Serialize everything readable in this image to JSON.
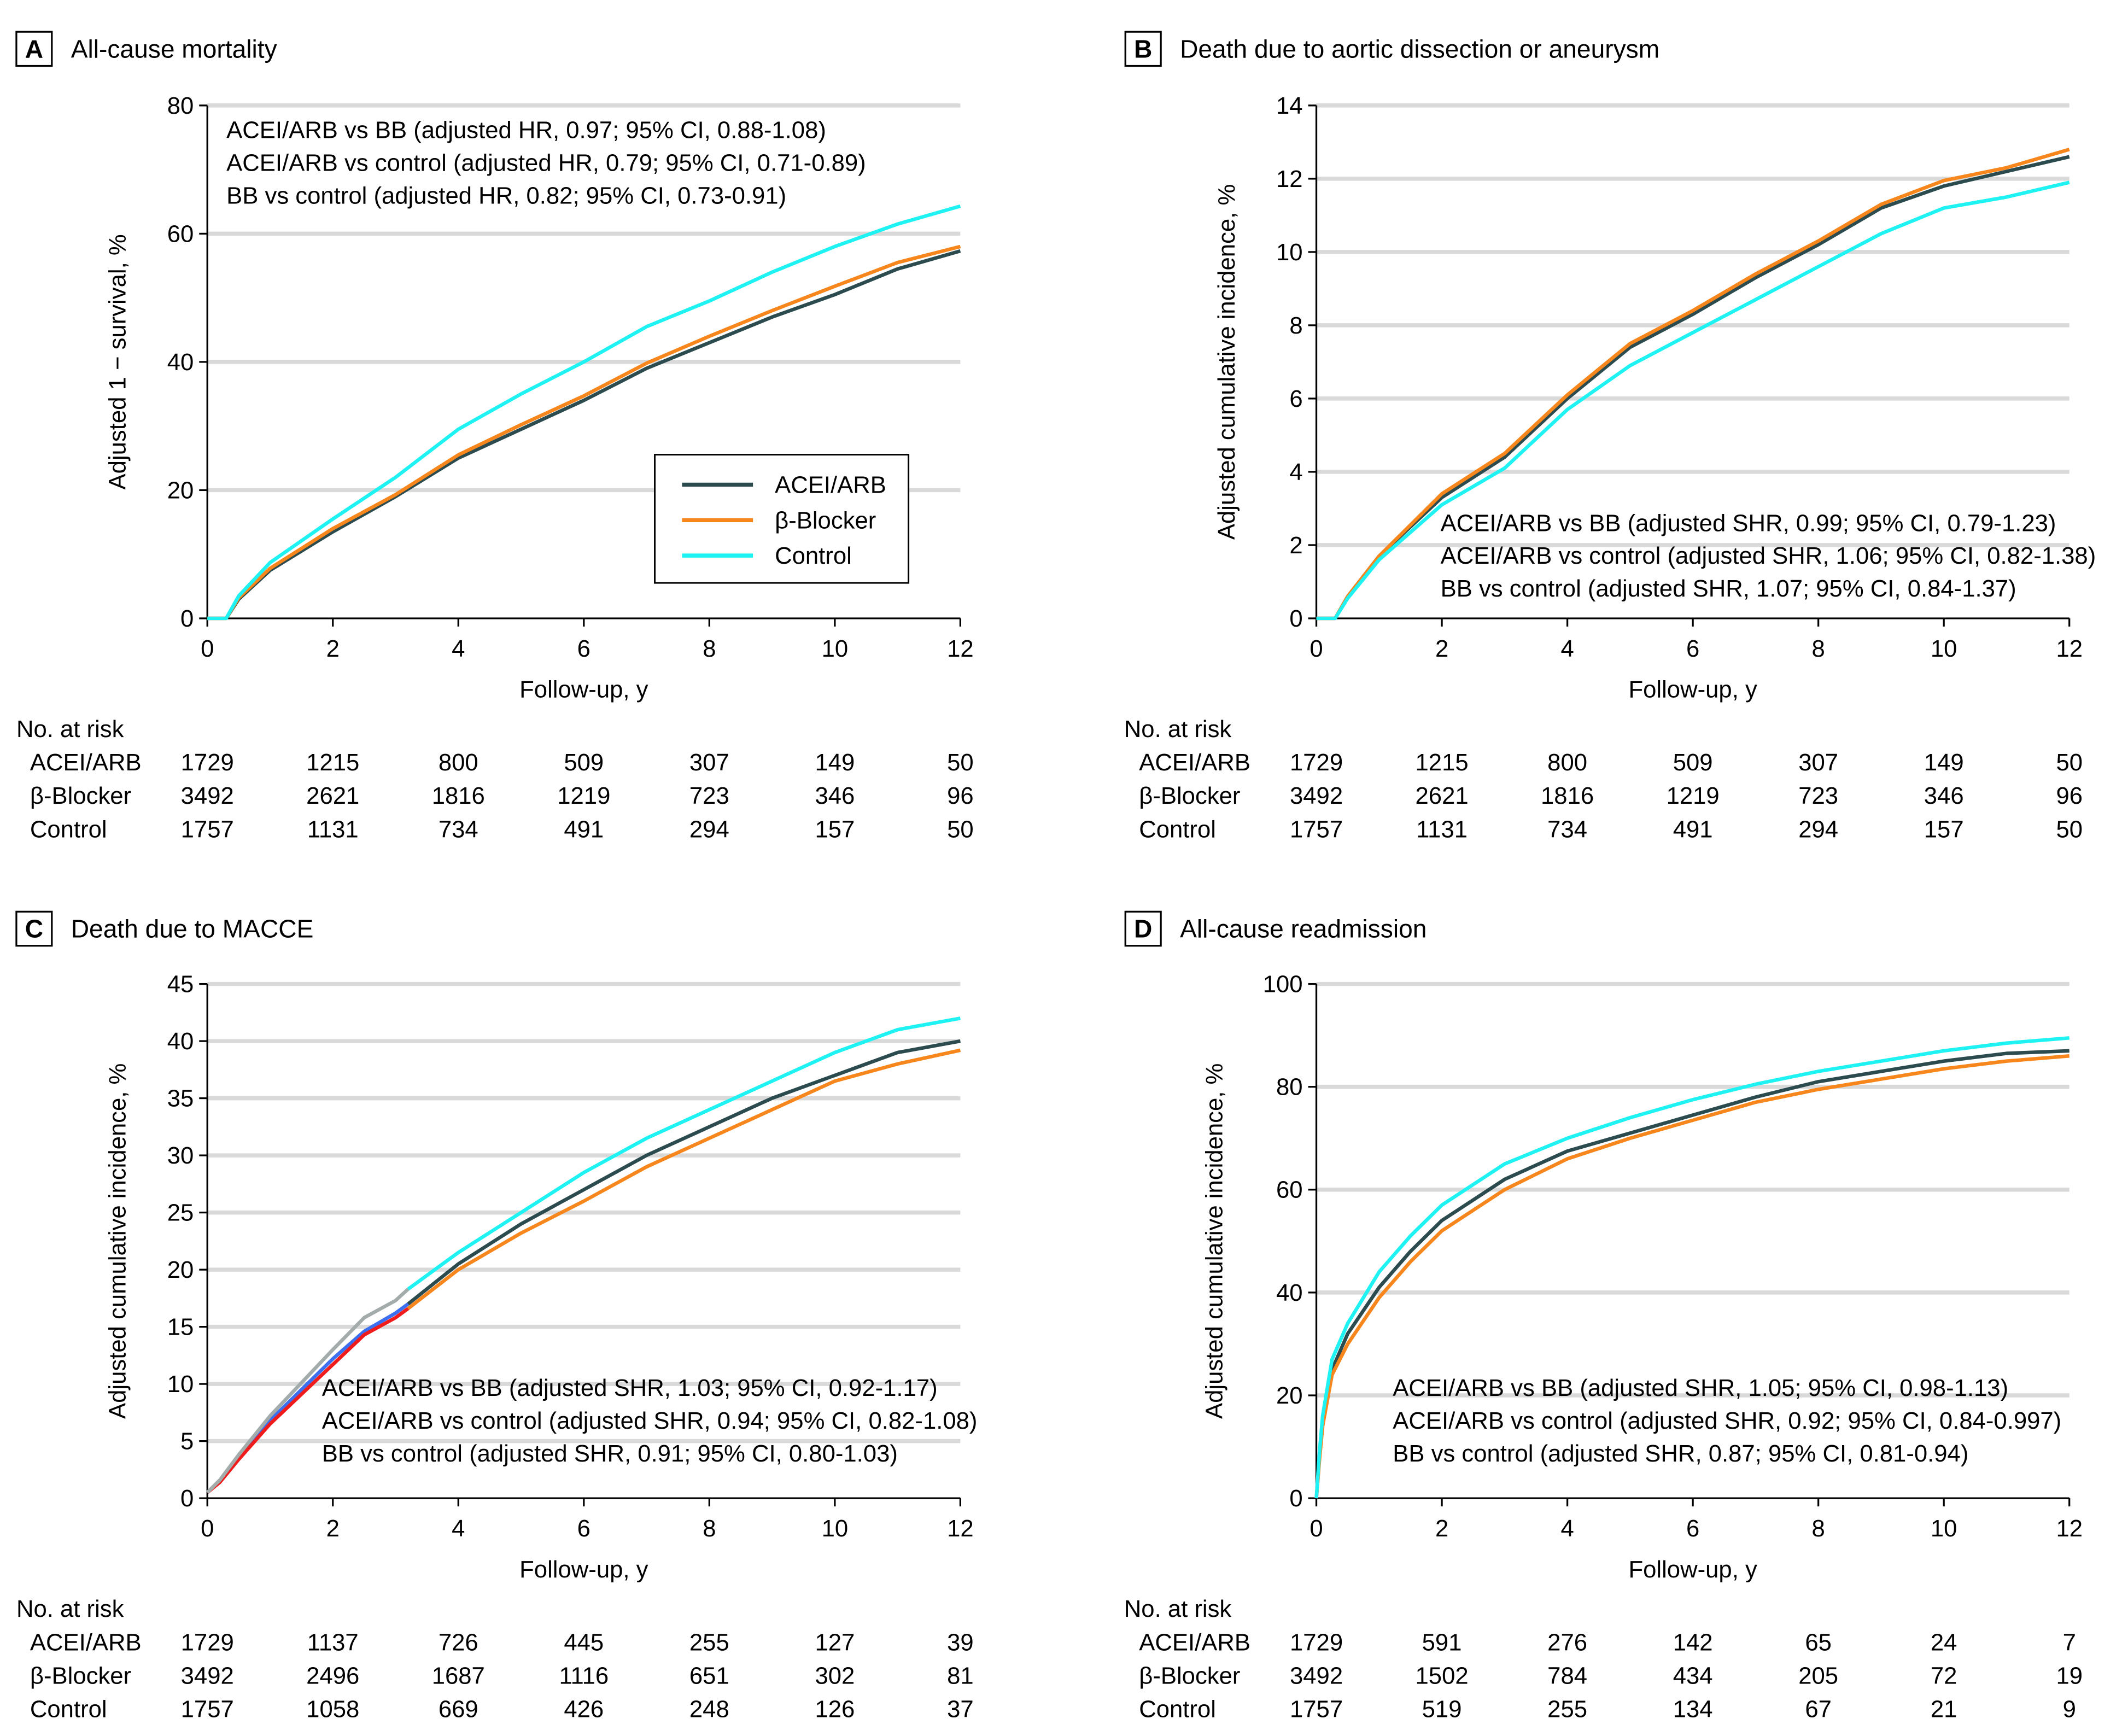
{
  "colors": {
    "acei": "#2b4b4e",
    "bb": "#f7861c",
    "control": "#1ef2f2",
    "early_acei": "#3b6ff0",
    "early_bb": "#f01c1c",
    "early_control": "#a3abab"
  },
  "legend": {
    "items": [
      {
        "label": "ACEI/ARB",
        "key": "acei"
      },
      {
        "label": "β-Blocker",
        "key": "bb"
      },
      {
        "label": "Control",
        "key": "control"
      }
    ]
  },
  "chart_data": [
    {
      "type": "line",
      "letter": "A",
      "title": "All-cause mortality",
      "xlabel": "Follow-up, y",
      "ylabel": "Adjusted 1 − survival, %",
      "xlim": [
        0,
        12
      ],
      "xticks": [
        0,
        2,
        4,
        6,
        8,
        10,
        12
      ],
      "ylim": [
        0,
        80
      ],
      "yticks": [
        0,
        20,
        40,
        60,
        80
      ],
      "grid": true,
      "legend": "center-right",
      "annotations": [
        "ACEI/ARB vs BB (adjusted HR, 0.97; 95% CI, 0.88-1.08)",
        "ACEI/ARB vs control (adjusted HR, 0.79; 95% CI, 0.71-0.89)",
        "BB vs control (adjusted HR, 0.82; 95% CI, 0.73-0.91)"
      ],
      "series": [
        {
          "name": "ACEI/ARB",
          "key": "acei",
          "x": [
            0,
            0.3,
            0.5,
            1,
            2,
            3,
            4,
            5,
            6,
            7,
            8,
            9,
            10,
            11,
            12
          ],
          "y": [
            0,
            0,
            3,
            7.5,
            13.5,
            19,
            25,
            29.5,
            34,
            39,
            43,
            47,
            50.5,
            54.5,
            57.3
          ]
        },
        {
          "name": "β-Blocker",
          "key": "bb",
          "x": [
            0,
            0.3,
            0.5,
            1,
            2,
            3,
            4,
            5,
            6,
            7,
            8,
            9,
            10,
            11,
            12
          ],
          "y": [
            0,
            0,
            3.2,
            7.8,
            14,
            19.3,
            25.5,
            30.2,
            34.7,
            39.8,
            44,
            48,
            51.8,
            55.5,
            58
          ]
        },
        {
          "name": "Control",
          "key": "control",
          "x": [
            0,
            0.3,
            0.5,
            1,
            2,
            3,
            4,
            5,
            6,
            7,
            8,
            9,
            10,
            11,
            12
          ],
          "y": [
            0,
            0,
            3.5,
            8.7,
            15.5,
            22,
            29.5,
            35,
            40,
            45.5,
            49.5,
            54,
            58,
            61.5,
            64.3
          ]
        }
      ],
      "risk_table": {
        "heading": "No. at risk",
        "rows": [
          {
            "label": "ACEI/ARB",
            "values": [
              "1729",
              "1215",
              "800",
              "509",
              "307",
              "149",
              "50"
            ]
          },
          {
            "label": "β-Blocker",
            "values": [
              "3492",
              "2621",
              "1816",
              "1219",
              "723",
              "346",
              "96"
            ]
          },
          {
            "label": "Control",
            "values": [
              "1757",
              "1131",
              "734",
              "491",
              "294",
              "157",
              "50"
            ]
          }
        ]
      }
    },
    {
      "type": "line",
      "letter": "B",
      "title": "Death due to aortic dissection or aneurysm",
      "xlabel": "Follow-up, y",
      "ylabel": "Adjusted cumulative incidence, %",
      "xlim": [
        0,
        12
      ],
      "xticks": [
        0,
        2,
        4,
        6,
        8,
        10,
        12
      ],
      "ylim": [
        0,
        14
      ],
      "yticks": [
        0,
        2,
        4,
        6,
        8,
        10,
        12,
        14
      ],
      "grid": true,
      "annotations": [
        "ACEI/ARB vs BB (adjusted SHR, 0.99; 95% CI, 0.79-1.23)",
        "ACEI/ARB vs control (adjusted SHR, 1.06; 95% CI, 0.82-1.38)",
        "BB vs control (adjusted SHR, 1.07; 95% CI, 0.84-1.37)"
      ],
      "series": [
        {
          "name": "ACEI/ARB",
          "key": "acei",
          "x": [
            0,
            0.3,
            0.5,
            1,
            2,
            3,
            4,
            5,
            6,
            7,
            8,
            9,
            10,
            11,
            12
          ],
          "y": [
            0,
            0,
            0.6,
            1.7,
            3.3,
            4.4,
            6,
            7.4,
            8.3,
            9.3,
            10.2,
            11.2,
            11.8,
            12.2,
            12.6
          ]
        },
        {
          "name": "β-Blocker",
          "key": "bb",
          "x": [
            0,
            0.3,
            0.5,
            1,
            2,
            3,
            4,
            5,
            6,
            7,
            8,
            9,
            10,
            11,
            12
          ],
          "y": [
            0,
            0,
            0.6,
            1.7,
            3.4,
            4.5,
            6.1,
            7.5,
            8.4,
            9.4,
            10.3,
            11.3,
            11.95,
            12.3,
            12.8
          ]
        },
        {
          "name": "Control",
          "key": "control",
          "x": [
            0,
            0.3,
            0.5,
            1,
            2,
            3,
            4,
            5,
            6,
            7,
            8,
            9,
            10,
            11,
            12
          ],
          "y": [
            0,
            0,
            0.55,
            1.6,
            3.1,
            4.1,
            5.7,
            6.9,
            7.8,
            8.7,
            9.6,
            10.5,
            11.2,
            11.5,
            11.9
          ]
        }
      ],
      "risk_table": {
        "heading": "No. at risk",
        "rows": [
          {
            "label": "ACEI/ARB",
            "values": [
              "1729",
              "1215",
              "800",
              "509",
              "307",
              "149",
              "50"
            ]
          },
          {
            "label": "β-Blocker",
            "values": [
              "3492",
              "2621",
              "1816",
              "1219",
              "723",
              "346",
              "96"
            ]
          },
          {
            "label": "Control",
            "values": [
              "1757",
              "1131",
              "734",
              "491",
              "294",
              "157",
              "50"
            ]
          }
        ]
      }
    },
    {
      "type": "line",
      "letter": "C",
      "title": "Death due to MACCE",
      "xlabel": "Follow-up, y",
      "ylabel": "Adjusted cumulative incidence, %",
      "xlim": [
        0,
        12
      ],
      "xticks": [
        0,
        2,
        4,
        6,
        8,
        10,
        12
      ],
      "ylim": [
        0,
        45
      ],
      "yticks": [
        0,
        5,
        10,
        15,
        20,
        25,
        30,
        35,
        40,
        45
      ],
      "grid": true,
      "early_segment_end": 3.2,
      "annotations": [
        "ACEI/ARB vs BB (adjusted SHR, 1.03; 95% CI, 0.92-1.17)",
        "ACEI/ARB vs control (adjusted SHR, 0.94; 95% CI, 0.82-1.08)",
        "BB vs control (adjusted SHR, 0.91; 95% CI, 0.80-1.03)"
      ],
      "series": [
        {
          "name": "ACEI/ARB",
          "key": "acei",
          "x": [
            0,
            0.2,
            0.5,
            1,
            2,
            2.5,
            3,
            3.2,
            4,
            5,
            6,
            7,
            8,
            9,
            10,
            11,
            12
          ],
          "y": [
            0.5,
            1.5,
            3.6,
            6.8,
            12.2,
            14.6,
            16.2,
            17,
            20.5,
            24,
            27,
            30,
            32.5,
            35,
            37,
            39,
            40
          ]
        },
        {
          "name": "β-Blocker",
          "key": "bb",
          "x": [
            0,
            0.2,
            0.5,
            1,
            2,
            2.5,
            3,
            3.2,
            4,
            5,
            6,
            7,
            8,
            9,
            10,
            11,
            12
          ],
          "y": [
            0.5,
            1.4,
            3.4,
            6.5,
            11.7,
            14.3,
            15.8,
            16.6,
            20,
            23.2,
            26,
            29,
            31.5,
            34,
            36.5,
            38,
            39.2
          ]
        },
        {
          "name": "Control",
          "key": "control",
          "x": [
            0,
            0.2,
            0.5,
            1,
            2,
            2.5,
            3,
            3.2,
            4,
            5,
            6,
            7,
            8,
            9,
            10,
            11,
            12
          ],
          "y": [
            0.5,
            1.6,
            3.8,
            7.2,
            13,
            15.8,
            17.3,
            18.3,
            21.5,
            25,
            28.5,
            31.5,
            34,
            36.5,
            39,
            41,
            42
          ]
        }
      ],
      "risk_table": {
        "heading": "No. at risk",
        "rows": [
          {
            "label": "ACEI/ARB",
            "values": [
              "1729",
              "1137",
              "726",
              "445",
              "255",
              "127",
              "39"
            ]
          },
          {
            "label": "β-Blocker",
            "values": [
              "3492",
              "2496",
              "1687",
              "1116",
              "651",
              "302",
              "81"
            ]
          },
          {
            "label": "Control",
            "values": [
              "1757",
              "1058",
              "669",
              "426",
              "248",
              "126",
              "37"
            ]
          }
        ]
      }
    },
    {
      "type": "line",
      "letter": "D",
      "title": "All-cause readmission",
      "xlabel": "Follow-up, y",
      "ylabel": "Adjusted cumulative incidence, %",
      "xlim": [
        0,
        12
      ],
      "xticks": [
        0,
        2,
        4,
        6,
        8,
        10,
        12
      ],
      "ylim": [
        0,
        100
      ],
      "yticks": [
        0,
        20,
        40,
        60,
        80,
        100
      ],
      "grid": true,
      "annotations": [
        "ACEI/ARB vs BB (adjusted SHR, 1.05; 95% CI, 0.98-1.13)",
        "ACEI/ARB vs control (adjusted SHR, 0.92; 95% CI, 0.84-0.997)",
        "BB vs control (adjusted SHR, 0.87; 95% CI, 0.81-0.94)"
      ],
      "series": [
        {
          "name": "ACEI/ARB",
          "key": "acei",
          "x": [
            0,
            0.05,
            0.1,
            0.25,
            0.5,
            1,
            1.5,
            2,
            3,
            4,
            5,
            6,
            7,
            8,
            9,
            10,
            11,
            12
          ],
          "y": [
            0,
            8,
            15,
            25,
            32,
            41,
            48,
            54,
            62,
            67.5,
            71,
            74.5,
            78,
            81,
            83,
            85,
            86.5,
            87
          ]
        },
        {
          "name": "β-Blocker",
          "key": "bb",
          "x": [
            0,
            0.05,
            0.1,
            0.25,
            0.5,
            1,
            1.5,
            2,
            3,
            4,
            5,
            6,
            7,
            8,
            9,
            10,
            11,
            12
          ],
          "y": [
            0,
            7.5,
            14,
            24,
            30,
            39,
            46,
            52,
            60,
            66,
            70,
            73.5,
            77,
            79.5,
            81.5,
            83.5,
            85,
            86
          ]
        },
        {
          "name": "Control",
          "key": "control",
          "x": [
            0,
            0.05,
            0.1,
            0.25,
            0.5,
            1,
            1.5,
            2,
            3,
            4,
            5,
            6,
            7,
            8,
            9,
            10,
            11,
            12
          ],
          "y": [
            0,
            9,
            16,
            27,
            34,
            44,
            51,
            57,
            65,
            70,
            74,
            77.5,
            80.5,
            83,
            85,
            87,
            88.5,
            89.5
          ]
        }
      ],
      "risk_table": {
        "heading": "No. at risk",
        "rows": [
          {
            "label": "ACEI/ARB",
            "values": [
              "1729",
              "591",
              "276",
              "142",
              "65",
              "24",
              "7"
            ]
          },
          {
            "label": "β-Blocker",
            "values": [
              "3492",
              "1502",
              "784",
              "434",
              "205",
              "72",
              "19"
            ]
          },
          {
            "label": "Control",
            "values": [
              "1757",
              "519",
              "255",
              "134",
              "67",
              "21",
              "9"
            ]
          }
        ]
      }
    }
  ]
}
